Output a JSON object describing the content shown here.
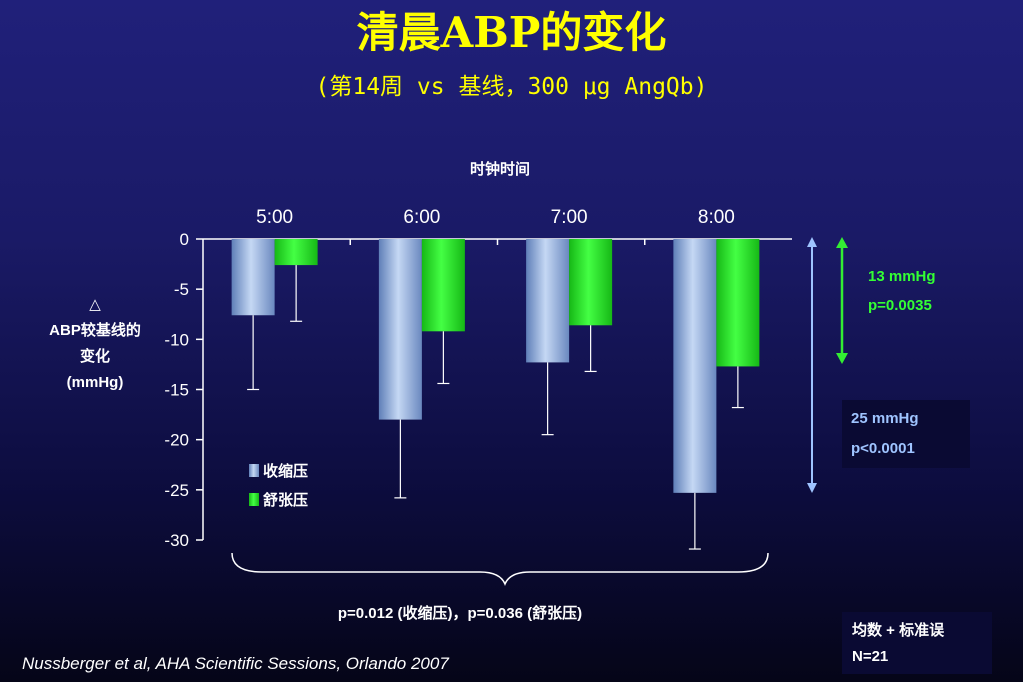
{
  "title": "清晨ABP的变化",
  "subtitle": "(第14周 vs 基线，300 μg AngQb)",
  "chart_data": {
    "type": "bar",
    "x_title": "时钟时间",
    "categories": [
      "5:00",
      "6:00",
      "7:00",
      "8:00"
    ],
    "ylabel_lines": [
      "△",
      "ABP较基线的",
      "变化",
      "(mmHg)"
    ],
    "ylim": [
      -30,
      0
    ],
    "yticks": [
      0,
      -5,
      -10,
      -15,
      -20,
      -25,
      -30
    ],
    "series": [
      {
        "name": "收缩压",
        "values": [
          -7.6,
          -18.0,
          -12.3,
          -25.3
        ],
        "errors": [
          7.4,
          7.8,
          7.2,
          5.6
        ],
        "color": "#9bb8e0"
      },
      {
        "name": "舒张压",
        "values": [
          -2.6,
          -9.2,
          -8.6,
          -12.7
        ],
        "errors": [
          5.6,
          5.2,
          4.6,
          4.1
        ],
        "color": "#22ee22"
      }
    ],
    "legend_placement": "inside-lower-left",
    "grid": false
  },
  "annotations": {
    "diastolic_diff": {
      "line1": "13 mmHg",
      "line2": "p=0.0035",
      "color": "#33ff33"
    },
    "systolic_diff": {
      "line1": "25 mmHg",
      "line2": "p<0.0001",
      "color": "#9fc4ff"
    },
    "brace_note": "p=0.012 (收缩压)，p=0.036 (舒张压)",
    "stats_note": {
      "line1": "均数 + 标准误",
      "line2": "N=21"
    }
  },
  "citation": "Nussberger et al, AHA Scientific Sessions, Orlando 2007"
}
